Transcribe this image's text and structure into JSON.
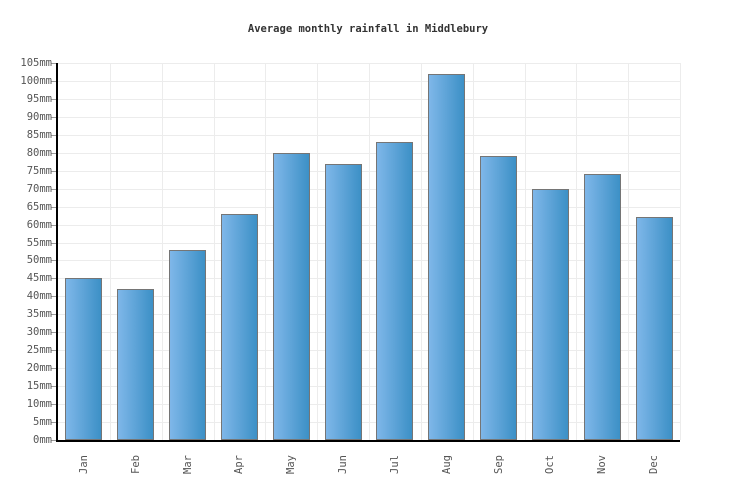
{
  "chart_data": {
    "type": "bar",
    "title": "Average monthly rainfall in Middlebury",
    "unit": "mm",
    "categories": [
      "Jan",
      "Feb",
      "Mar",
      "Apr",
      "May",
      "Jun",
      "Jul",
      "Aug",
      "Sep",
      "Oct",
      "Nov",
      "Dec"
    ],
    "values": [
      45,
      42,
      53,
      63,
      80,
      77,
      83,
      102,
      79,
      70,
      74,
      62
    ],
    "xlabel": "",
    "ylabel": "",
    "ylim": [
      0,
      105
    ],
    "ytick_step": 5,
    "grid": true,
    "legend": "none",
    "colors": {
      "bar_gradient_left": "#7fb7e9",
      "bar_gradient_right": "#3c90c6",
      "bar_border": "#757575",
      "gridline": "#ececec",
      "axis": "#000000",
      "tick": "#999999",
      "label": "#555555",
      "title": "#333333",
      "background": "#ffffff"
    }
  }
}
